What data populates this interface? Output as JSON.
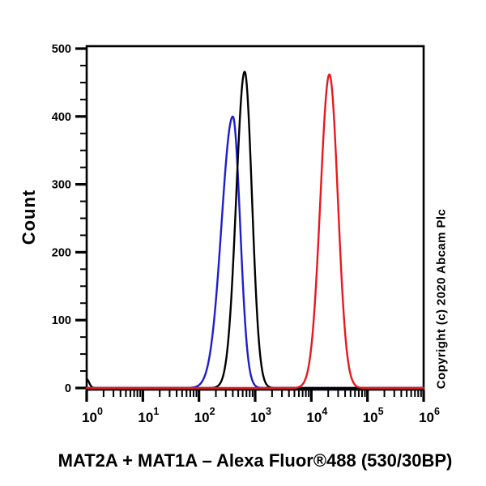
{
  "title": "MAT2A + MAT1A – Alexa Fluor®488 (530/30BP)",
  "copyright": "Copyright (c) 2020 Abcam Plc",
  "chart_data": {
    "type": "line",
    "subtype": "flow-cytometry-histogram-overlay",
    "title": "MAT2A + MAT1A – Alexa Fluor®488 (530/30BP)",
    "xlabel": "",
    "ylabel": "Count",
    "x_scale": "log10",
    "xlim": [
      1,
      1000000
    ],
    "ylim": [
      0,
      500
    ],
    "x_tick_exponents": [
      0,
      1,
      2,
      3,
      4,
      5,
      6
    ],
    "x_tick_base": "10",
    "x_minor_ticks_per_decade": [
      2,
      3,
      4,
      5,
      6,
      7,
      8,
      9
    ],
    "y_ticks": [
      0,
      100,
      200,
      300,
      400,
      500
    ],
    "y_minor_step": 25,
    "grid": false,
    "legend": "none",
    "frame_color": "#000000",
    "background": "#ffffff",
    "series": [
      {
        "name": "blue",
        "color": "#1E1EC8",
        "shape": "log-gaussian",
        "peak_x": 400,
        "peak_count": 400,
        "sigma_left_decades": 0.2,
        "sigma_right_decades": 0.13,
        "edge_spike_count": 0
      },
      {
        "name": "black",
        "color": "#000000",
        "shape": "log-gaussian",
        "peak_x": 650,
        "peak_count": 466,
        "sigma_left_decades": 0.15,
        "sigma_right_decades": 0.13,
        "edge_spike_count": 13
      },
      {
        "name": "red",
        "color": "#E8191C",
        "shape": "log-gaussian",
        "peak_x": 21000,
        "peak_count": 462,
        "sigma_left_decades": 0.16,
        "sigma_right_decades": 0.15,
        "edge_spike_count": 0
      }
    ]
  }
}
